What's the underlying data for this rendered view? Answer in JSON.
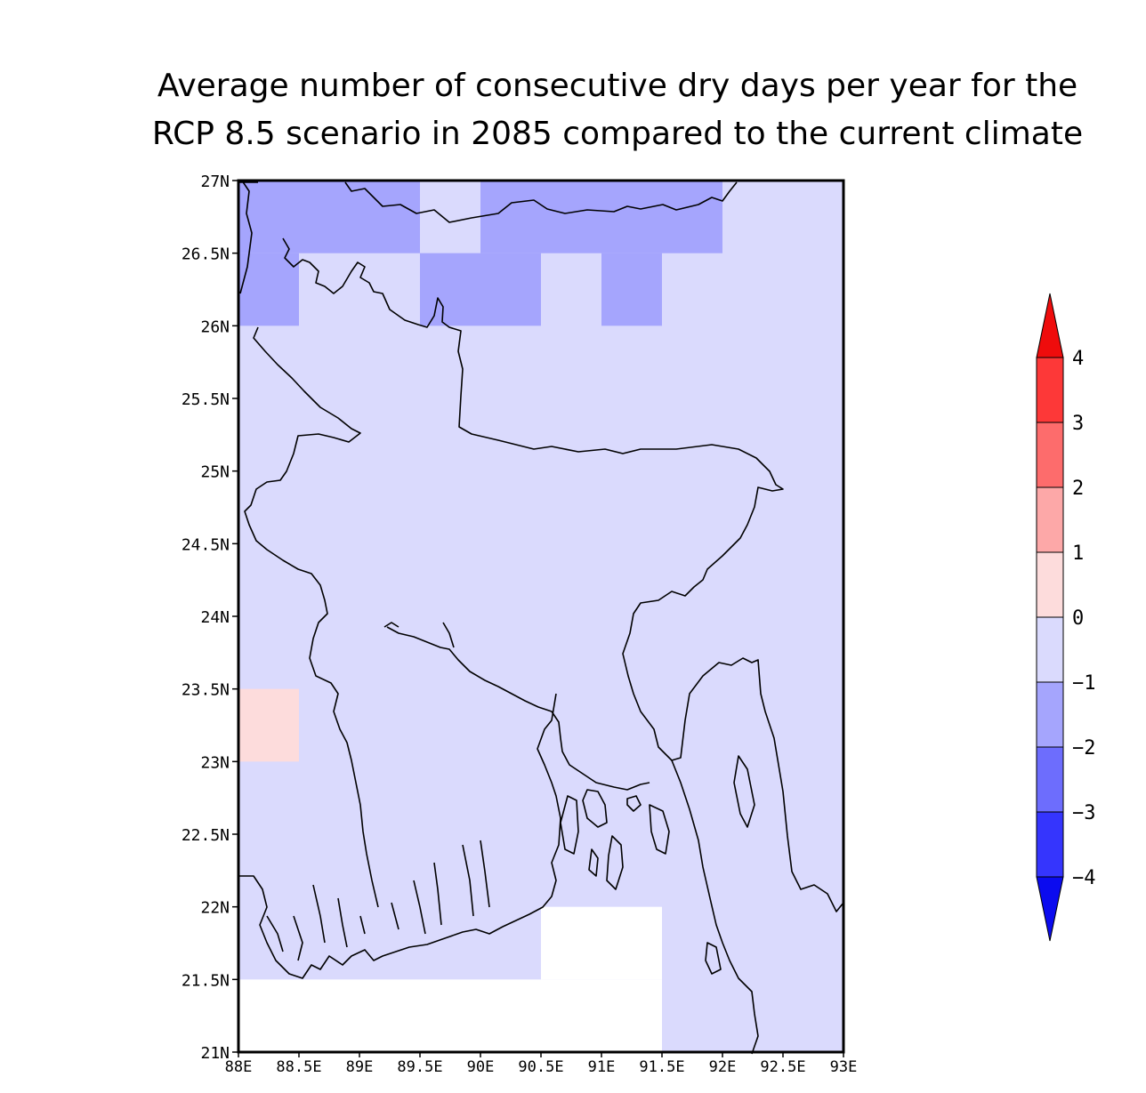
{
  "title": {
    "line1": "Average number of consecutive dry days per year for the",
    "line2": "RCP 8.5 scenario in 2085 compared to the current climate"
  },
  "map": {
    "projection": "lat-lon",
    "lon_range": [
      88,
      93
    ],
    "lat_range": [
      21,
      27
    ],
    "grid_cell_deg": 0.5,
    "lon_ticks": [
      "88E",
      "88.5E",
      "89E",
      "89.5E",
      "90E",
      "90.5E",
      "91E",
      "91.5E",
      "92E",
      "92.5E",
      "93E"
    ],
    "lat_ticks": [
      "21N",
      "21.5N",
      "22N",
      "22.5N",
      "23N",
      "23.5N",
      "24N",
      "24.5N",
      "25N",
      "25.5N",
      "26N",
      "26.5N",
      "27N"
    ],
    "coastline_color": "#000000",
    "cells_default_class": "-1 to 0",
    "cells": [
      {
        "lon": 88.0,
        "lat": 26.5,
        "class": "-2 to -1"
      },
      {
        "lon": 88.5,
        "lat": 26.5,
        "class": "-2 to -1"
      },
      {
        "lon": 89.0,
        "lat": 26.5,
        "class": "-2 to -1"
      },
      {
        "lon": 90.0,
        "lat": 26.5,
        "class": "-2 to -1"
      },
      {
        "lon": 90.5,
        "lat": 26.5,
        "class": "-2 to -1"
      },
      {
        "lon": 91.0,
        "lat": 26.5,
        "class": "-2 to -1"
      },
      {
        "lon": 91.5,
        "lat": 26.5,
        "class": "-2 to -1"
      },
      {
        "lon": 88.0,
        "lat": 26.0,
        "class": "-2 to -1"
      },
      {
        "lon": 89.5,
        "lat": 26.0,
        "class": "-2 to -1"
      },
      {
        "lon": 90.0,
        "lat": 26.0,
        "class": "-2 to -1"
      },
      {
        "lon": 91.0,
        "lat": 26.0,
        "class": "-2 to -1"
      },
      {
        "lon": 88.0,
        "lat": 23.0,
        "class": "0 to 1"
      },
      {
        "lon": 90.5,
        "lat": 21.5,
        "class": "missing"
      },
      {
        "lon": 91.0,
        "lat": 21.5,
        "class": "missing"
      },
      {
        "lon": 88.0,
        "lat": 21.0,
        "class": "missing"
      },
      {
        "lon": 88.5,
        "lat": 21.0,
        "class": "missing"
      },
      {
        "lon": 89.0,
        "lat": 21.0,
        "class": "missing"
      },
      {
        "lon": 89.5,
        "lat": 21.0,
        "class": "missing"
      },
      {
        "lon": 90.0,
        "lat": 21.0,
        "class": "missing"
      },
      {
        "lon": 90.5,
        "lat": 21.0,
        "class": "missing"
      },
      {
        "lon": 91.0,
        "lat": 21.0,
        "class": "missing"
      }
    ]
  },
  "colorbar": {
    "labels": [
      "4",
      "3",
      "2",
      "1",
      "0",
      "−1",
      "−2",
      "−3",
      "−4"
    ],
    "bins": [
      {
        "class": ">4",
        "color": "#ef0c0c"
      },
      {
        "class": "3 to 4",
        "color": "#fd3838"
      },
      {
        "class": "2 to 3",
        "color": "#fd6c6c"
      },
      {
        "class": "1 to 2",
        "color": "#fda8a8"
      },
      {
        "class": "0 to 1",
        "color": "#fddcdc"
      },
      {
        "class": "-1 to 0",
        "color": "#dadafd"
      },
      {
        "class": "-2 to -1",
        "color": "#a5a5fd"
      },
      {
        "class": "-3 to -2",
        "color": "#6d6dfd"
      },
      {
        "class": "-4 to -3",
        "color": "#3535fd"
      },
      {
        "class": "<-4",
        "color": "#0b0bef"
      }
    ],
    "missing_color": "#ffffff"
  }
}
